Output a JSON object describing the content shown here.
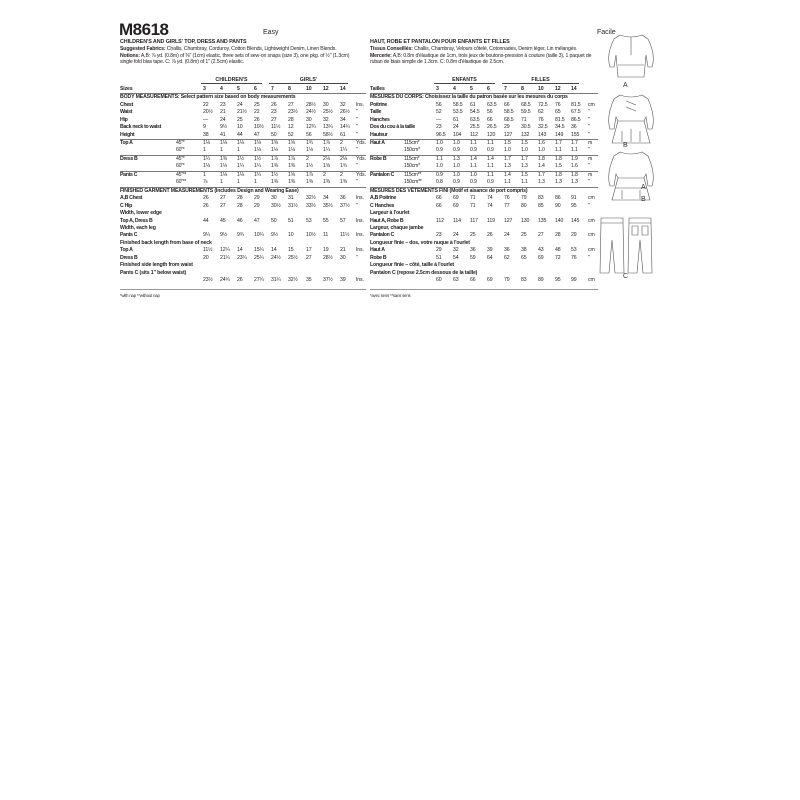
{
  "pattern_number": "M8618",
  "english": {
    "level": "Easy",
    "title": "CHILDREN'S AND GIRLS' TOP, DRESS AND PANTS",
    "fabrics_label": "Suggested Fabrics:",
    "fabrics": "Challis, Chambray, Corduroy, Cotton Blends, Lightweight Denim, Linen Blends.",
    "notions_label": "Notions:",
    "notions_lines": [
      "A,B: ⅞ yd. (0.8m) of ⅜\" (1cm) elastic, three sets of sew-on snaps (size 3), one pkg. of ½\"",
      "(1.3cm) single fold bias tape. C: ⅞ yd. (0.8m) of 1\" (2.5cm) elastic."
    ],
    "group_headers": [
      "CHILDREN'S",
      "GIRLS'"
    ],
    "sizes_label": "Sizes",
    "sizes": [
      "3",
      "4",
      "5",
      "6",
      "7",
      "8",
      "10",
      "12",
      "14"
    ],
    "rows": [
      {
        "heading": "BODY MEASUREMENTS: Select pattern size based on body measurements"
      },
      {
        "label": "Chest",
        "values": [
          "22",
          "23",
          "24",
          "25",
          "26",
          "27",
          "28½",
          "30",
          "32"
        ],
        "unit": "Ins."
      },
      {
        "label": "Waist",
        "values": [
          "20½",
          "21",
          "21½",
          "22",
          "23",
          "23½",
          "24½",
          "25½",
          "26½"
        ],
        "unit": "\""
      },
      {
        "label": "Hip",
        "values": [
          "—",
          "24",
          "25",
          "26",
          "27",
          "28",
          "30",
          "32",
          "34"
        ],
        "unit": "\""
      },
      {
        "label": "Back neck to waist",
        "values": [
          "9",
          "9½",
          "10",
          "10½",
          "11½",
          "12",
          "12¾",
          "13¼",
          "14¼"
        ],
        "unit": "\""
      },
      {
        "label": "Height",
        "values": [
          "38",
          "41",
          "44",
          "47",
          "50",
          "52",
          "56",
          "58½",
          "61"
        ],
        "unit": "\"",
        "rule": true
      },
      {
        "label": "Top A",
        "sub": "45\"*",
        "values": [
          "1⅛",
          "1⅛",
          "1⅛",
          "1⅛",
          "1⅝",
          "1⅝",
          "1¾",
          "1⅞",
          "2"
        ],
        "unit": "Yds."
      },
      {
        "sub": "60\"*",
        "values": [
          "1",
          "1",
          "1",
          "1⅛",
          "1⅛",
          "1⅛",
          "1⅛",
          "1¼",
          "1¼"
        ],
        "unit": "\"",
        "rule": true
      },
      {
        "label": "Dress B",
        "sub": "45\"*",
        "values": [
          "1¼",
          "1⅜",
          "1½",
          "1½",
          "1⅞",
          "1⅞",
          "2",
          "2⅛",
          "2⅛"
        ],
        "unit": "Yds."
      },
      {
        "sub": "60\"*",
        "values": [
          "1⅛",
          "1⅛",
          "1¼",
          "1¼",
          "1⅜",
          "1⅜",
          "1½",
          "1⅝",
          "1¾"
        ],
        "unit": "\"",
        "rule": true
      },
      {
        "label": "Pants C",
        "sub": "45\"**",
        "values": [
          "1",
          "1⅛",
          "1⅛",
          "1¼",
          "1½",
          "1⅝",
          "1⅞",
          "2",
          "2"
        ],
        "unit": "Yds."
      },
      {
        "sub": "60\"**",
        "values": [
          "⅞",
          "1",
          "1",
          "1",
          "1⅜",
          "1⅜",
          "1⅜",
          "1⅜",
          "1⅜"
        ],
        "unit": "\"",
        "rule": true
      },
      {
        "heading": "FINISHED GARMENT MEASUREMENTS (Includes Design and Wearing Ease)"
      },
      {
        "label": "A,B Chest",
        "values": [
          "26",
          "27",
          "28",
          "29",
          "30",
          "31",
          "32½",
          "34",
          "36"
        ],
        "unit": "Ins."
      },
      {
        "label": "C Hip",
        "values": [
          "26",
          "27",
          "28",
          "29",
          "30½",
          "31½",
          "33½",
          "35½",
          "37½"
        ],
        "unit": "\""
      },
      {
        "heading": "Width, lower edge"
      },
      {
        "label": "Top A, Dress B",
        "values": [
          "44",
          "45",
          "46",
          "47",
          "50",
          "51",
          "53",
          "55",
          "57"
        ],
        "unit": "Ins."
      },
      {
        "heading": "Width, each leg"
      },
      {
        "label": "Pants C",
        "values": [
          "9¼",
          "9½",
          "9¾",
          "10¼",
          "9½",
          "10",
          "10½",
          "11",
          "11½"
        ],
        "unit": "Ins."
      },
      {
        "heading": "Finished back length from base of neck"
      },
      {
        "label": "Top A",
        "values": [
          "11½",
          "12¼",
          "14",
          "15¼",
          "14",
          "15",
          "17",
          "19",
          "21"
        ],
        "unit": "Ins."
      },
      {
        "label": "Dress B",
        "values": [
          "20",
          "21¼",
          "23¼",
          "25¼",
          "24½",
          "25½",
          "27",
          "28½",
          "30"
        ],
        "unit": "\""
      },
      {
        "heading": "Finished side length from waist"
      },
      {
        "heading": "Pants C (sits 1\" below waist)"
      },
      {
        "values": [
          "23½",
          "24¾",
          "26",
          "27¼",
          "31¼",
          "32½",
          "35",
          "37½",
          "39"
        ],
        "unit": "Ins."
      }
    ],
    "footnote": "*with nap   **without nap"
  },
  "french": {
    "level": "Facile",
    "title": "HAUT, ROBE ET PANTALON POUR ENFANTS ET FILLES",
    "fabrics_label": "Tissus Conseillés:",
    "fabrics": "Challis, Chambray, Velours côtelé, Cotonnades, Denim léger, Lin mélangés.",
    "notions_label": "Mercerie:",
    "notions_lines": [
      "A,B: 0.8m d'élastique de 1cm, trois jeux de boutons-pression à couture (taille 3), 1 paquet",
      "de ruban de biais simple de 1.3cm. C: 0.8m d'élastique de 2.5cm."
    ],
    "group_headers": [
      "ENFANTS",
      "FILLES"
    ],
    "sizes_label": "Tailles",
    "sizes": [
      "3",
      "4",
      "5",
      "6",
      "7",
      "8",
      "10",
      "12",
      "14"
    ],
    "rows": [
      {
        "heading": "MESURES DU CORPS: Choisissez la taille du patron basée sur les mesures du corps"
      },
      {
        "label": "Poitrine",
        "values": [
          "56",
          "58.5",
          "61",
          "63.5",
          "66",
          "68.5",
          "72.5",
          "76",
          "81.5"
        ],
        "unit": "cm"
      },
      {
        "label": "Taille",
        "values": [
          "52",
          "53.5",
          "54.5",
          "56",
          "58.5",
          "59.5",
          "62",
          "65",
          "67.5"
        ],
        "unit": "\""
      },
      {
        "label": "Hanches",
        "values": [
          "—",
          "61",
          "63.5",
          "66",
          "68.5",
          "71",
          "76",
          "81.5",
          "86.5"
        ],
        "unit": "\""
      },
      {
        "label": "Dos du cou à la taille",
        "values": [
          "23",
          "24",
          "25.5",
          "26.5",
          "29",
          "30.5",
          "32.5",
          "34.5",
          "36"
        ],
        "unit": "\""
      },
      {
        "label": "Hauteur",
        "values": [
          "96.5",
          "104",
          "112",
          "120",
          "127",
          "132",
          "143",
          "149",
          "155"
        ],
        "unit": "\"",
        "rule": true
      },
      {
        "label": "Haut A",
        "sub": "115cm*",
        "values": [
          "1.0",
          "1.0",
          "1.1",
          "1.1",
          "1.5",
          "1.5",
          "1.6",
          "1.7",
          "1.7"
        ],
        "unit": "m"
      },
      {
        "sub": "150cm*",
        "values": [
          "0.9",
          "0.9",
          "0.9",
          "0.9",
          "1.0",
          "1.0",
          "1.0",
          "1.1",
          "1.1"
        ],
        "unit": "\"",
        "rule": true
      },
      {
        "label": "Robe B",
        "sub": "115cm*",
        "values": [
          "1.1",
          "1.3",
          "1.4",
          "1.4",
          "1.7",
          "1.7",
          "1.8",
          "1.8",
          "1.9"
        ],
        "unit": "m"
      },
      {
        "sub": "150cm*",
        "values": [
          "1.0",
          "1.0",
          "1.1",
          "1.1",
          "1.3",
          "1.3",
          "1.4",
          "1.5",
          "1.6"
        ],
        "unit": "\"",
        "rule": true
      },
      {
        "label": "Pantalon C",
        "sub": "115cm**",
        "values": [
          "0.9",
          "1.0",
          "1.0",
          "1.1",
          "1.4",
          "1.5",
          "1.7",
          "1.8",
          "1.8"
        ],
        "unit": "m"
      },
      {
        "sub": "150cm**",
        "values": [
          "0.8",
          "0.9",
          "0.9",
          "0.9",
          "1.1",
          "1.1",
          "1.3",
          "1.3",
          "1.3"
        ],
        "unit": "\"",
        "rule": true
      },
      {
        "heading": "MESURES DES VÊTEMENTS FINI (Motif et aisance de port compris)"
      },
      {
        "label": "A,B Poitrine",
        "values": [
          "66",
          "69",
          "71",
          "74",
          "76",
          "79",
          "83",
          "86",
          "91"
        ],
        "unit": "cm"
      },
      {
        "label": "C Hanches",
        "values": [
          "66",
          "69",
          "71",
          "74",
          "77",
          "80",
          "85",
          "90",
          "95"
        ],
        "unit": "\""
      },
      {
        "heading": "Largeur à l'ourlet"
      },
      {
        "label": "Haut A, Robe B",
        "values": [
          "112",
          "114",
          "117",
          "119",
          "127",
          "130",
          "135",
          "140",
          "145"
        ],
        "unit": "cm"
      },
      {
        "heading": "Largeur, chaque jambe"
      },
      {
        "label": "Pantalon C",
        "values": [
          "23",
          "24",
          "25",
          "26",
          "24",
          "25",
          "27",
          "28",
          "29"
        ],
        "unit": "cm"
      },
      {
        "heading": "Longueur finie – dos, votre nuque à l'ourlet"
      },
      {
        "label": "Haut A",
        "values": [
          "29",
          "32",
          "36",
          "39",
          "36",
          "38",
          "43",
          "48",
          "53"
        ],
        "unit": "cm"
      },
      {
        "label": "Robe B",
        "values": [
          "51",
          "54",
          "59",
          "64",
          "62",
          "65",
          "69",
          "72",
          "76"
        ],
        "unit": "\""
      },
      {
        "heading": "Longueur finie – côté, taille à l'ourlet"
      },
      {
        "heading": "Pantalon C (repose 2.5cm dessous de la taille)"
      },
      {
        "values": [
          "60",
          "63",
          "66",
          "69",
          "79",
          "83",
          "89",
          "95",
          "99"
        ],
        "unit": "cm"
      }
    ],
    "footnote": "*avec sens   **sans sens"
  },
  "illustrations": {
    "labels": [
      "A",
      "B",
      "A",
      "B",
      "C"
    ]
  }
}
